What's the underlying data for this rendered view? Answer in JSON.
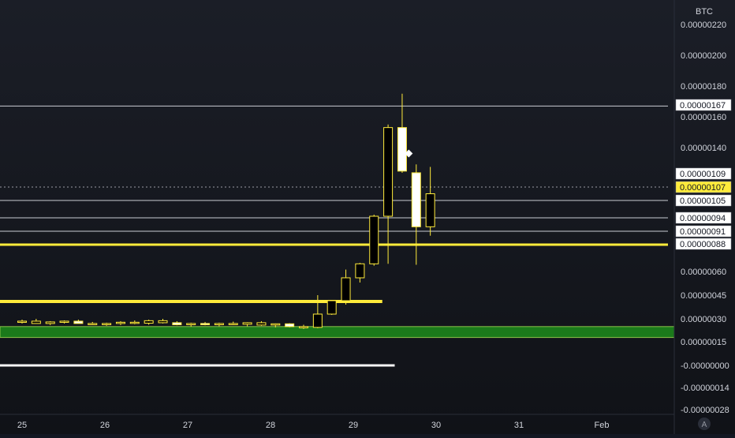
{
  "chart_data": {
    "type": "candlestick",
    "currency_label": "BTC",
    "x_ticks": [
      "25",
      "26",
      "27",
      "28",
      "29",
      "30",
      "31",
      "Feb"
    ],
    "y_ticks": [
      "0.00000220",
      "0.00000200",
      "0.00000180",
      "0.00000160",
      "0.00000140",
      "0.00000060",
      "0.00000045",
      "0.00000030",
      "0.00000015",
      "-0.00000000",
      "-0.00000014",
      "-0.00000028"
    ],
    "ylim": [
      -2.8e-07,
      2.2e-06
    ],
    "candles": [
      {
        "t": 25.0,
        "o": 2.8e-07,
        "h": 2.95e-07,
        "l": 2.7e-07,
        "c": 2.85e-07,
        "fill": "black"
      },
      {
        "t": 25.17,
        "o": 2.85e-07,
        "h": 3e-07,
        "l": 2.75e-07,
        "c": 2.7e-07,
        "fill": "black"
      },
      {
        "t": 25.34,
        "o": 2.7e-07,
        "h": 2.85e-07,
        "l": 2.6e-07,
        "c": 2.8e-07,
        "fill": "black"
      },
      {
        "t": 25.51,
        "o": 2.8e-07,
        "h": 2.9e-07,
        "l": 2.7e-07,
        "c": 2.85e-07,
        "fill": "black"
      },
      {
        "t": 25.68,
        "o": 2.85e-07,
        "h": 2.95e-07,
        "l": 2.7e-07,
        "c": 2.7e-07,
        "fill": "white"
      },
      {
        "t": 25.85,
        "o": 2.7e-07,
        "h": 2.8e-07,
        "l": 2.6e-07,
        "c": 2.65e-07,
        "fill": "black"
      },
      {
        "t": 26.02,
        "o": 2.65e-07,
        "h": 2.75e-07,
        "l": 2.55e-07,
        "c": 2.7e-07,
        "fill": "black"
      },
      {
        "t": 26.19,
        "o": 2.7e-07,
        "h": 2.85e-07,
        "l": 2.6e-07,
        "c": 2.78e-07,
        "fill": "black"
      },
      {
        "t": 26.36,
        "o": 2.78e-07,
        "h": 2.9e-07,
        "l": 2.65e-07,
        "c": 2.72e-07,
        "fill": "black"
      },
      {
        "t": 26.53,
        "o": 2.72e-07,
        "h": 2.95e-07,
        "l": 2.62e-07,
        "c": 2.88e-07,
        "fill": "black"
      },
      {
        "t": 26.7,
        "o": 2.88e-07,
        "h": 3e-07,
        "l": 2.7e-07,
        "c": 2.75e-07,
        "fill": "black"
      },
      {
        "t": 26.87,
        "o": 2.75e-07,
        "h": 2.85e-07,
        "l": 2.58e-07,
        "c": 2.62e-07,
        "fill": "white"
      },
      {
        "t": 27.04,
        "o": 2.62e-07,
        "h": 2.75e-07,
        "l": 2.5e-07,
        "c": 2.7e-07,
        "fill": "black"
      },
      {
        "t": 27.21,
        "o": 2.7e-07,
        "h": 2.8e-07,
        "l": 2.58e-07,
        "c": 2.62e-07,
        "fill": "white"
      },
      {
        "t": 27.38,
        "o": 2.62e-07,
        "h": 2.75e-07,
        "l": 2.52e-07,
        "c": 2.7e-07,
        "fill": "black"
      },
      {
        "t": 27.55,
        "o": 2.7e-07,
        "h": 2.82e-07,
        "l": 2.6e-07,
        "c": 2.65e-07,
        "fill": "black"
      },
      {
        "t": 27.72,
        "o": 2.65e-07,
        "h": 2.78e-07,
        "l": 2.52e-07,
        "c": 2.75e-07,
        "fill": "black"
      },
      {
        "t": 27.89,
        "o": 2.75e-07,
        "h": 2.85e-07,
        "l": 2.55e-07,
        "c": 2.6e-07,
        "fill": "black"
      },
      {
        "t": 28.06,
        "o": 2.6e-07,
        "h": 2.7e-07,
        "l": 2.45e-07,
        "c": 2.68e-07,
        "fill": "black"
      },
      {
        "t": 28.23,
        "o": 2.68e-07,
        "h": 2.72e-07,
        "l": 2.45e-07,
        "c": 2.5e-07,
        "fill": "white"
      },
      {
        "t": 28.4,
        "o": 2.5e-07,
        "h": 2.62e-07,
        "l": 2.35e-07,
        "c": 2.45e-07,
        "fill": "black"
      },
      {
        "t": 28.57,
        "o": 2.45e-07,
        "h": 4.5e-07,
        "l": 2.4e-07,
        "c": 3.3e-07,
        "fill": "black"
      },
      {
        "t": 28.74,
        "o": 3.3e-07,
        "h": 4.2e-07,
        "l": 3.25e-07,
        "c": 4.15e-07,
        "fill": "black"
      },
      {
        "t": 28.91,
        "o": 4.15e-07,
        "h": 6.2e-07,
        "l": 3.9e-07,
        "c": 5.6e-07,
        "fill": "black"
      },
      {
        "t": 29.08,
        "o": 5.6e-07,
        "h": 6.9e-07,
        "l": 5.3e-07,
        "c": 6.8e-07,
        "fill": "black"
      },
      {
        "t": 29.25,
        "o": 6.8e-07,
        "h": 9.6e-07,
        "l": 6.6e-07,
        "c": 9.5e-07,
        "fill": "black"
      },
      {
        "t": 29.42,
        "o": 9.5e-07,
        "h": 1.55e-06,
        "l": 6.8e-07,
        "c": 1.53e-06,
        "fill": "black"
      },
      {
        "t": 29.59,
        "o": 1.53e-06,
        "h": 1.75e-06,
        "l": 1.1e-06,
        "c": 1.12e-06,
        "fill": "white"
      },
      {
        "t": 29.76,
        "o": 1.1e-06,
        "h": 1.2e-06,
        "l": 6.7e-07,
        "c": 9.2e-07,
        "fill": "white"
      },
      {
        "t": 29.93,
        "o": 9.2e-07,
        "h": 1.17e-06,
        "l": 9e-07,
        "c": 1.06e-06,
        "fill": "black"
      }
    ],
    "marker": {
      "t": 29.67,
      "price": 1.33e-06
    },
    "price_tags": [
      {
        "label": "0.00000167",
        "price": 1.67e-06,
        "style": "white"
      },
      {
        "label": "0.00000109",
        "price": 1.09e-06,
        "style": "white"
      },
      {
        "label": "0.00000107",
        "price": 1.07e-06,
        "style": "yellow"
      },
      {
        "label": "0.00000105",
        "price": 1.05e-06,
        "style": "white"
      },
      {
        "label": "0.00000094",
        "price": 9.4e-07,
        "style": "white"
      },
      {
        "label": "0.00000091",
        "price": 9.1e-07,
        "style": "white"
      },
      {
        "label": "0.00000088",
        "price": 8.8e-07,
        "style": "white"
      }
    ],
    "hlines": [
      {
        "price": 1.67e-06,
        "color": "#c9ccd3",
        "width": 1,
        "dash": "",
        "from": 24.72,
        "to": 32.8
      },
      {
        "price": 1.07e-06,
        "color": "#9a9ca3",
        "width": 1,
        "dash": "2,3",
        "from": 24.72,
        "to": 32.8
      },
      {
        "price": 1.05e-06,
        "color": "#c9ccd3",
        "width": 1,
        "dash": "",
        "from": 24.72,
        "to": 32.8
      },
      {
        "price": 9.4e-07,
        "color": "#c9ccd3",
        "width": 1,
        "dash": "",
        "from": 24.72,
        "to": 32.8
      },
      {
        "price": 9.1e-07,
        "color": "#c9ccd3",
        "width": 1,
        "dash": "",
        "from": 24.72,
        "to": 32.8
      },
      {
        "price": 8.8e-07,
        "color": "#ffeb3b",
        "width": 3,
        "dash": "",
        "from": 24.72,
        "to": 32.8
      },
      {
        "price": 4.1e-07,
        "color": "#ffeb3b",
        "width": 4,
        "dash": "",
        "from": 24.72,
        "to": 29.35
      },
      {
        "price": -0.0,
        "color": "#f5f5f5",
        "width": 3,
        "dash": "",
        "from": 24.8,
        "to": 29.5
      }
    ],
    "zone": {
      "from": 2.5e-07,
      "to": 1.8e-07,
      "fill": "#1b7a1b",
      "stroke": "#8bc34a"
    }
  },
  "ui": {
    "auto_scale_button": "A"
  },
  "colors": {
    "candle_outline": "#ffeb3b",
    "white_body": "#ffffff",
    "tag_yellow": "#ffeb3b"
  }
}
